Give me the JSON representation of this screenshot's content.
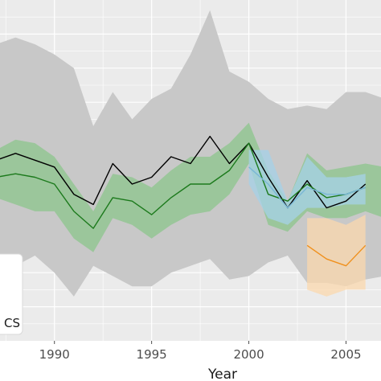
{
  "chart_data": {
    "type": "line",
    "title": "",
    "xlabel": "Year",
    "ylabel": "",
    "xlim": [
      1987.2,
      2006.8
    ],
    "ylim": [
      0,
      10
    ],
    "grid": true,
    "legend_position": "bottom-left",
    "legend_visible_text": "CS",
    "x_ticks": [
      1990,
      1995,
      2000,
      2005
    ],
    "bands": [
      {
        "color": "#c8c8c8",
        "x": [
          1987,
          1988,
          1989,
          1990,
          1991,
          1992,
          1993,
          1994,
          1995,
          1996,
          1997,
          1998,
          1999,
          2000,
          2001,
          2002,
          2003,
          2004,
          2005,
          2006,
          2007
        ],
        "upper": [
          8.7,
          8.9,
          8.7,
          8.4,
          8.0,
          6.3,
          7.3,
          6.5,
          7.1,
          7.4,
          8.4,
          9.7,
          7.9,
          7.6,
          7.1,
          6.8,
          6.9,
          6.8,
          7.3,
          7.3,
          7.1
        ],
        "lower": [
          2.1,
          2.2,
          2.5,
          2.0,
          1.3,
          2.2,
          1.9,
          1.6,
          1.6,
          2.0,
          2.2,
          2.4,
          1.8,
          1.9,
          2.3,
          2.5,
          1.7,
          1.7,
          1.6,
          1.8,
          1.9
        ]
      },
      {
        "color": "#8cc68c",
        "x": [
          1987,
          1988,
          1989,
          1990,
          1991,
          1992,
          1993,
          1994,
          1995,
          1996,
          1997,
          1998,
          1999,
          2000,
          2001,
          2002,
          2003,
          2004,
          2005,
          2006,
          2007
        ],
        "upper": [
          5.6,
          5.9,
          5.8,
          5.4,
          4.6,
          3.8,
          4.9,
          4.8,
          4.5,
          5.0,
          5.4,
          5.4,
          5.8,
          6.4,
          5.0,
          4.1,
          5.5,
          5.0,
          5.1,
          5.2,
          5.1
        ],
        "lower": [
          4.2,
          4.0,
          3.8,
          3.8,
          3.0,
          2.6,
          3.6,
          3.4,
          3.0,
          3.4,
          3.7,
          3.8,
          4.3,
          5.2,
          3.4,
          3.2,
          3.8,
          3.6,
          3.6,
          3.8,
          3.6
        ]
      },
      {
        "color": "#a6d2e8",
        "x": [
          2000,
          2001,
          2002,
          2003,
          2004,
          2005,
          2006
        ],
        "upper": [
          5.6,
          5.6,
          4.1,
          5.4,
          4.8,
          4.8,
          4.9
        ],
        "lower": [
          4.6,
          3.6,
          3.4,
          3.9,
          3.9,
          4.0,
          4.0
        ]
      },
      {
        "color": "#fbd8ad",
        "x": [
          2003,
          2004,
          2005,
          2006
        ],
        "upper": [
          3.6,
          3.6,
          3.4,
          3.7
        ],
        "lower": [
          1.5,
          1.3,
          1.5,
          1.5
        ]
      }
    ],
    "series": [
      {
        "color": "#000000",
        "x": [
          1987,
          1988,
          1989,
          1990,
          1991,
          1992,
          1993,
          1994,
          1995,
          1996,
          1997,
          1998,
          1999,
          2000,
          2001,
          2002,
          2003,
          2004,
          2005,
          2006
        ],
        "values": [
          5.3,
          5.5,
          5.3,
          5.1,
          4.3,
          4.0,
          5.2,
          4.6,
          4.8,
          5.4,
          5.2,
          6.0,
          5.2,
          5.8,
          4.8,
          3.9,
          4.7,
          3.9,
          4.1,
          4.6
        ]
      },
      {
        "color": "#1c7a1c",
        "x": [
          1987,
          1988,
          1989,
          1990,
          1991,
          1992,
          1993,
          1994,
          1995,
          1996,
          1997,
          1998,
          1999,
          2000,
          2001,
          2002,
          2003,
          2004,
          2005,
          2006
        ],
        "values": [
          4.8,
          4.9,
          4.8,
          4.6,
          3.8,
          3.3,
          4.2,
          4.1,
          3.7,
          4.2,
          4.6,
          4.6,
          5.0,
          5.8,
          4.3,
          4.1,
          4.6,
          4.2,
          4.3,
          4.5
        ]
      },
      {
        "color": "#7ab7d6",
        "x": [
          2000,
          2001,
          2002,
          2003,
          2004,
          2005,
          2006
        ],
        "values": [
          5.1,
          4.6,
          3.9,
          4.5,
          4.3,
          4.3,
          4.5
        ]
      },
      {
        "color": "#f0901c",
        "x": [
          2003,
          2004,
          2005,
          2006
        ],
        "values": [
          2.8,
          2.4,
          2.2,
          2.8
        ]
      }
    ]
  }
}
